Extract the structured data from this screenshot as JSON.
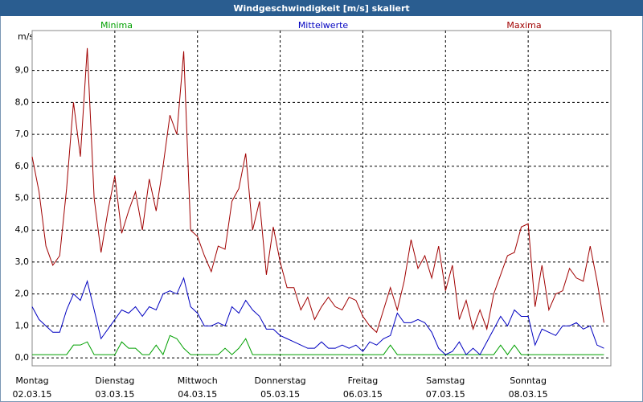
{
  "chart_data": {
    "type": "line",
    "title": "Windgeschwindigkeit [m/s] skaliert",
    "y_label": "m/s",
    "ylim": [
      -0.25,
      10.25
    ],
    "yticks": [
      {
        "value": 0,
        "label": "0,0"
      },
      {
        "value": 1,
        "label": "1,0"
      },
      {
        "value": 2,
        "label": "2,0"
      },
      {
        "value": 3,
        "label": "3,0"
      },
      {
        "value": 4,
        "label": "4,0"
      },
      {
        "value": 5,
        "label": "5,0"
      },
      {
        "value": 6,
        "label": "6,0"
      },
      {
        "value": 7,
        "label": "7,0"
      },
      {
        "value": 8,
        "label": "8,0"
      },
      {
        "value": 9,
        "label": "9,0"
      }
    ],
    "grid": true,
    "days": [
      {
        "day": "Montag",
        "date": "02.03.15"
      },
      {
        "day": "Dienstag",
        "date": "03.03.15"
      },
      {
        "day": "Mittwoch",
        "date": "04.03.15"
      },
      {
        "day": "Donnerstag",
        "date": "05.03.15"
      },
      {
        "day": "Freitag",
        "date": "06.03.15"
      },
      {
        "day": "Samstag",
        "date": "07.03.15"
      },
      {
        "day": "Sonntag",
        "date": "08.03.15"
      }
    ],
    "series": [
      {
        "name": "Minima",
        "color": "#00a000",
        "values": [
          0.1,
          0.1,
          0.1,
          0.1,
          0.1,
          0.1,
          0.4,
          0.4,
          0.5,
          0.1,
          0.1,
          0.1,
          0.1,
          0.5,
          0.3,
          0.3,
          0.1,
          0.1,
          0.4,
          0.1,
          0.7,
          0.6,
          0.3,
          0.1,
          0.1,
          0.1,
          0.1,
          0.1,
          0.3,
          0.1,
          0.3,
          0.6,
          0.1,
          0.1,
          0.1,
          0.1,
          0.1,
          0.1,
          0.1,
          0.1,
          0.1,
          0.1,
          0.1,
          0.1,
          0.1,
          0.1,
          0.1,
          0.1,
          0.1,
          0.1,
          0.1,
          0.1,
          0.4,
          0.1,
          0.1,
          0.1,
          0.1,
          0.1,
          0.1,
          0.1,
          0.1,
          0.1,
          0.1,
          0.1,
          0.1,
          0.1,
          0.1,
          0.1,
          0.4,
          0.1,
          0.4,
          0.1,
          0.1,
          0.1,
          0.1,
          0.1,
          0.1,
          0.1,
          0.1,
          0.1,
          0.1,
          0.1,
          0.1,
          0.1
        ]
      },
      {
        "name": "Mittelwerte",
        "color": "#0000c0",
        "values": [
          1.6,
          1.2,
          1.0,
          0.8,
          0.8,
          1.5,
          2.0,
          1.8,
          2.4,
          1.5,
          0.6,
          0.9,
          1.2,
          1.5,
          1.4,
          1.6,
          1.3,
          1.6,
          1.5,
          2.0,
          2.1,
          2.0,
          2.5,
          1.6,
          1.4,
          1.0,
          1.0,
          1.1,
          1.0,
          1.6,
          1.4,
          1.8,
          1.5,
          1.3,
          0.9,
          0.9,
          0.7,
          0.6,
          0.5,
          0.4,
          0.3,
          0.3,
          0.5,
          0.3,
          0.3,
          0.4,
          0.3,
          0.4,
          0.2,
          0.5,
          0.4,
          0.6,
          0.7,
          1.4,
          1.1,
          1.1,
          1.2,
          1.1,
          0.8,
          0.3,
          0.1,
          0.2,
          0.5,
          0.1,
          0.3,
          0.1,
          0.5,
          0.9,
          1.3,
          1.0,
          1.5,
          1.3,
          1.3,
          0.4,
          0.9,
          0.8,
          0.7,
          1.0,
          1.0,
          1.1,
          0.9,
          1.0,
          0.4,
          0.3
        ]
      },
      {
        "name": "Maxima",
        "color": "#a00000",
        "values": [
          6.3,
          5.2,
          3.5,
          2.9,
          3.2,
          5.3,
          8.0,
          6.3,
          9.7,
          5.0,
          3.3,
          4.6,
          5.7,
          3.9,
          4.6,
          5.2,
          4.0,
          5.6,
          4.6,
          6.0,
          7.6,
          7.0,
          9.6,
          4.0,
          3.8,
          3.2,
          2.7,
          3.5,
          3.4,
          4.9,
          5.3,
          6.4,
          4.0,
          4.9,
          2.6,
          4.1,
          3.0,
          2.2,
          2.2,
          1.5,
          1.9,
          1.2,
          1.6,
          1.9,
          1.6,
          1.5,
          1.9,
          1.8,
          1.3,
          1.0,
          0.8,
          1.5,
          2.2,
          1.5,
          2.4,
          3.7,
          2.8,
          3.2,
          2.5,
          3.5,
          2.1,
          2.9,
          1.2,
          1.8,
          0.9,
          1.5,
          0.9,
          2.0,
          2.6,
          3.2,
          3.3,
          4.1,
          4.2,
          1.6,
          2.9,
          1.5,
          2.0,
          2.1,
          2.8,
          2.5,
          2.4,
          3.5,
          2.4,
          1.1
        ]
      }
    ]
  }
}
